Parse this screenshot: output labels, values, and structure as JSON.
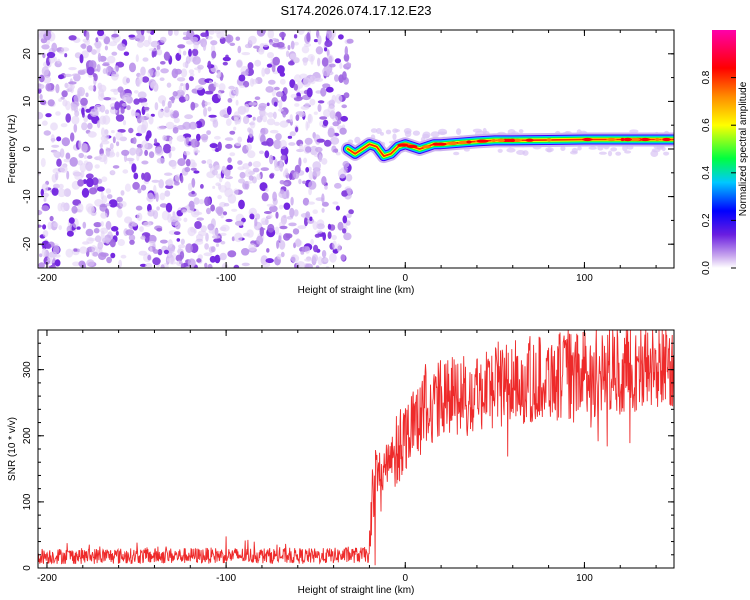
{
  "title": "S174.2026.074.17.12.E23",
  "chart_data": [
    {
      "type": "heatmap",
      "name": "spectrogram",
      "xlabel": "Height of straight line (km)",
      "ylabel": "Frequency (Hz)",
      "xlim": [
        -205,
        150
      ],
      "ylim": [
        -25,
        25
      ],
      "xticks": [
        -200,
        -100,
        0,
        100
      ],
      "xtick_labels": [
        "-200",
        "-100",
        "0",
        "100"
      ],
      "yticks": [
        -20,
        -10,
        0,
        10,
        20
      ],
      "ytick_labels": [
        "-20",
        "-10",
        "0",
        "10",
        "20"
      ],
      "noise_region_x": [
        -205,
        -30
      ],
      "signal_start_x": -32,
      "signal_track": {
        "x": [
          -32,
          -28,
          -24,
          -20,
          -16,
          -12,
          -8,
          -4,
          0,
          4,
          8,
          12,
          16,
          20,
          30,
          40,
          50,
          60,
          80,
          100,
          120,
          150
        ],
        "freq": [
          0.0,
          -1.0,
          0.0,
          1.0,
          0.5,
          -1.5,
          -1.0,
          0.5,
          1.0,
          0.5,
          0.0,
          0.5,
          1.0,
          1.0,
          1.3,
          1.6,
          1.8,
          1.8,
          1.9,
          2.0,
          2.0,
          2.0
        ]
      },
      "colorbar": {
        "label": "Normalized spectral amplitude",
        "range": [
          0.0,
          1.0
        ],
        "ticks": [
          0.0,
          0.2,
          0.4,
          0.6,
          0.8
        ],
        "tick_labels": [
          "0.0",
          "0.2",
          "0.4",
          "0.6",
          "0.8"
        ]
      }
    },
    {
      "type": "line",
      "name": "snr",
      "xlabel": "Height of straight line (km)",
      "ylabel": "SNR (10 * v/v)",
      "xlim": [
        -205,
        150
      ],
      "ylim": [
        0,
        360
      ],
      "xticks": [
        -200,
        -100,
        0,
        100
      ],
      "xtick_labels": [
        "-200",
        "-100",
        "0",
        "100"
      ],
      "yticks": [
        0,
        100,
        200,
        300
      ],
      "ytick_labels": [
        "0",
        "100",
        "200",
        "300"
      ],
      "series": [
        {
          "name": "SNR",
          "color": "#ee2a2a",
          "x": [
            -205,
            -150,
            -100,
            -50,
            -20,
            -19,
            -15,
            -10,
            -5,
            0,
            5,
            10,
            20,
            30,
            40,
            50,
            60,
            70,
            80,
            90,
            100,
            110,
            120,
            130,
            140,
            150
          ],
          "values": [
            18,
            18,
            19,
            18,
            20,
            110,
            140,
            150,
            170,
            200,
            230,
            240,
            255,
            265,
            270,
            275,
            280,
            285,
            290,
            290,
            290,
            295,
            300,
            302,
            305,
            310
          ]
        }
      ]
    }
  ]
}
